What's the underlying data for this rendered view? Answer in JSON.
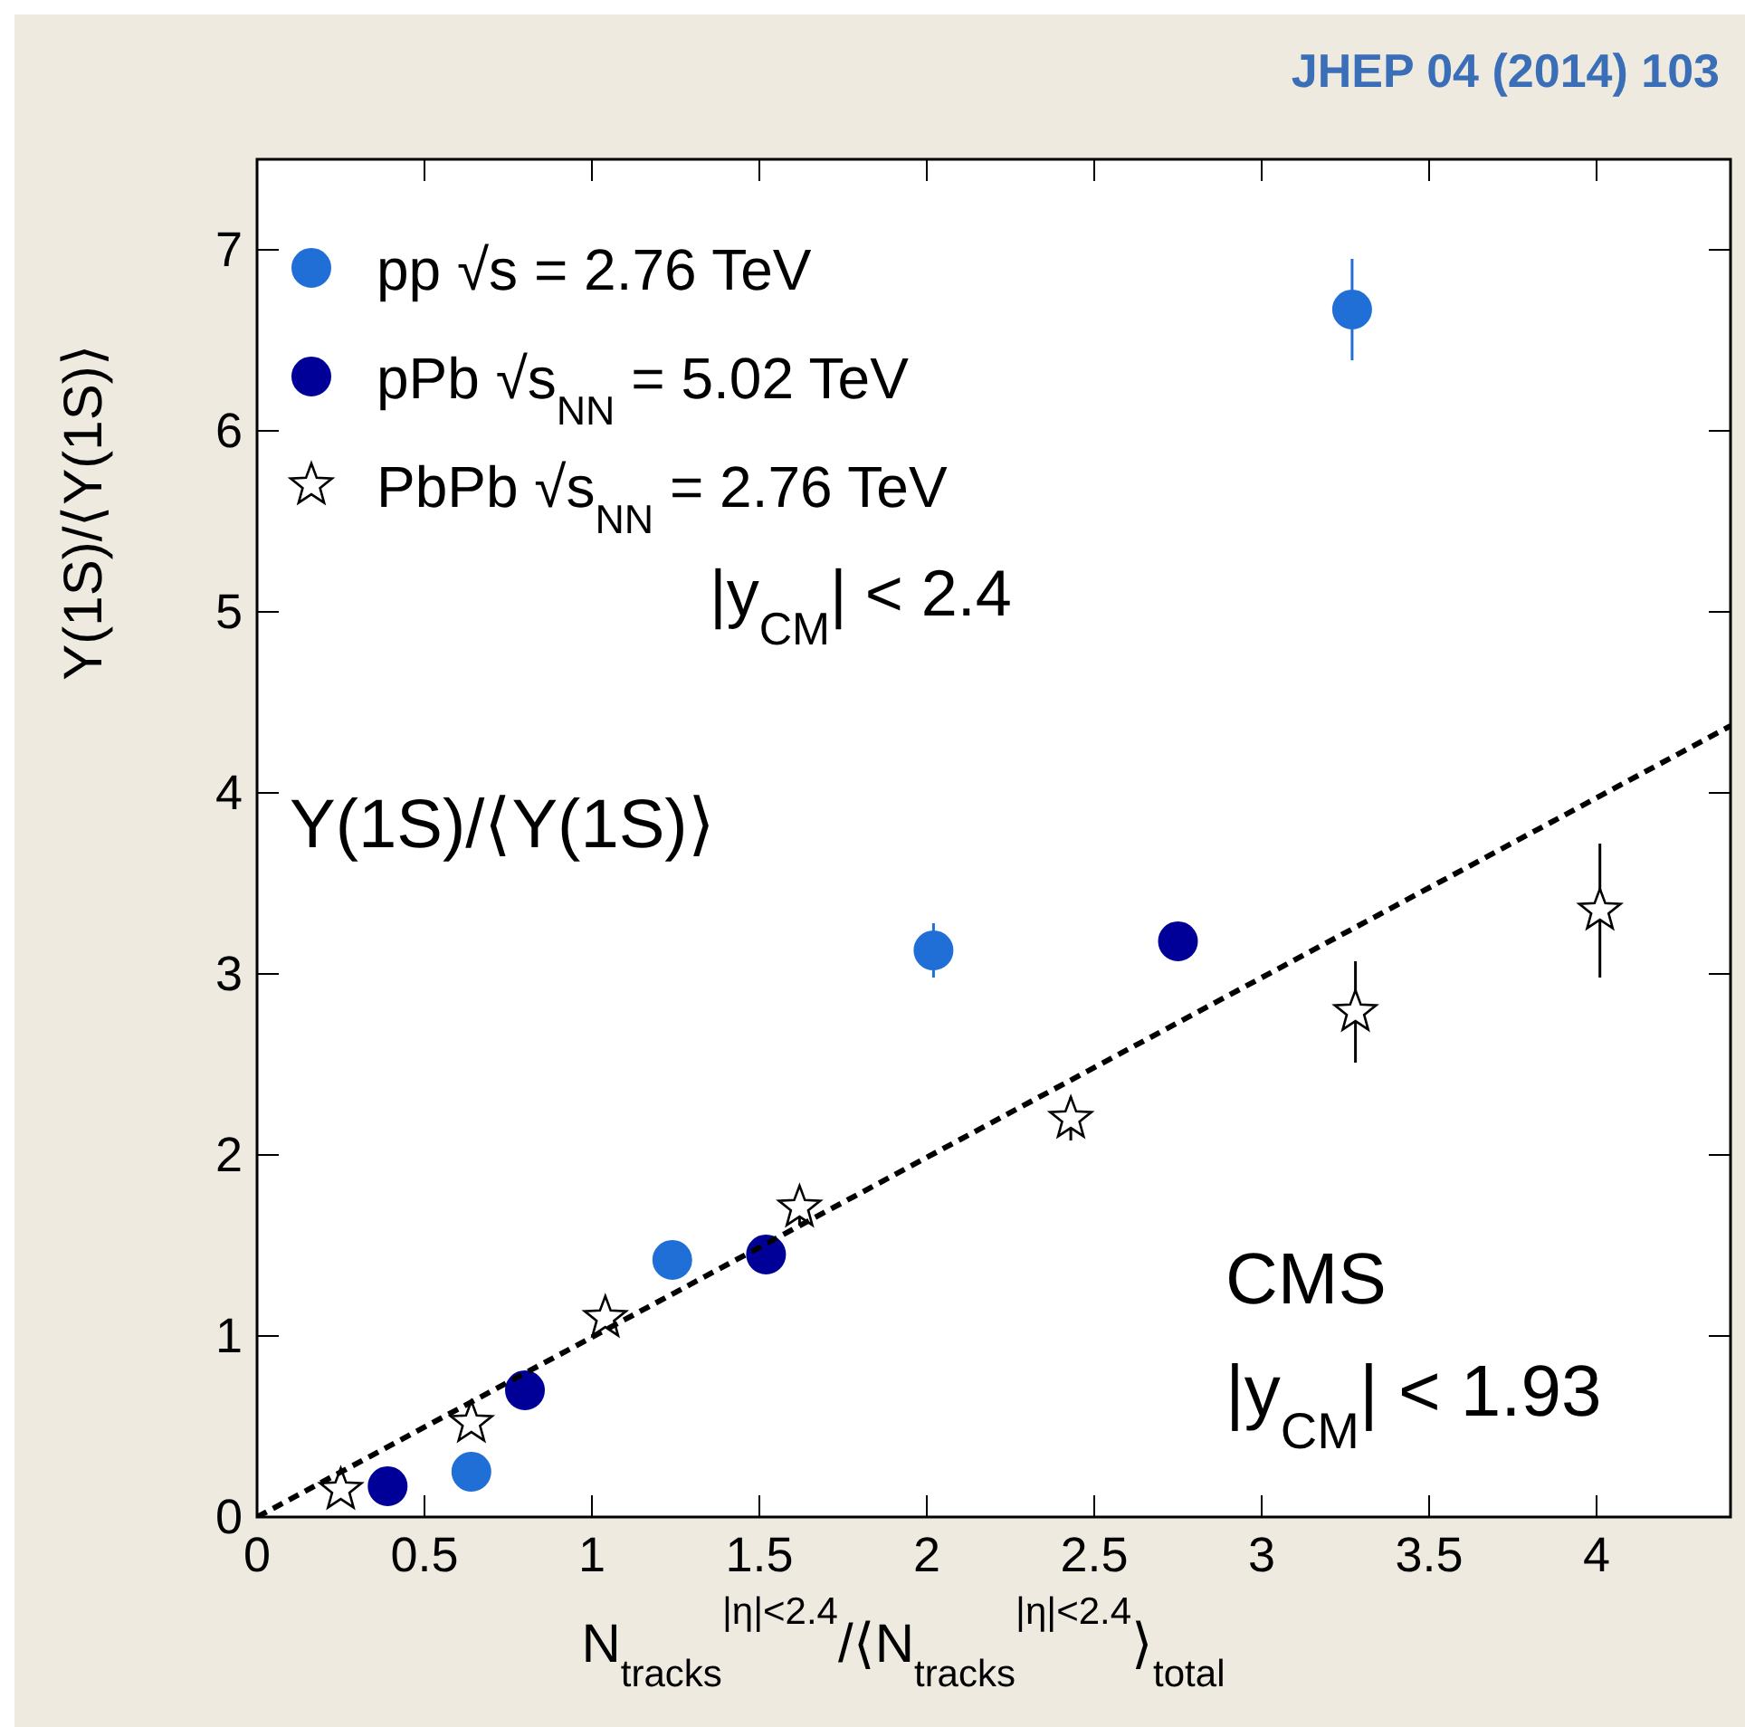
{
  "chart_data": {
    "type": "scatter",
    "xlabel": "N$_{tracks}$$^{|η|<2.4}$/⟨N$_{tracks}$$^{|η|<2.4}$⟩$_{total}$",
    "ylabel": "Υ(1S)/⟨Υ(1S)⟩",
    "xlim": [
      0,
      4.4
    ],
    "xticks": [
      0,
      0.5,
      1,
      1.5,
      2,
      2.5,
      3,
      3.5,
      4
    ],
    "ylim": [
      0,
      7.5
    ],
    "yticks": [
      0,
      1,
      2,
      3,
      4,
      5,
      6,
      7
    ],
    "grid": false,
    "legend": "top left",
    "series": [
      {
        "name": "pp √s = 2.76 TeV",
        "color": "#1f6fd6",
        "marker": "circle",
        "x": [
          0.64,
          1.24,
          2.02,
          3.27
        ],
        "values": [
          0.25,
          1.42,
          3.13,
          6.67
        ],
        "errors": [
          null,
          null,
          0.15,
          0.28
        ]
      },
      {
        "name": "pPb √s$_{NN}$ = 5.02 TeV",
        "color": "#000099",
        "marker": "circle",
        "x": [
          0.39,
          0.8,
          1.52,
          2.75
        ],
        "values": [
          0.17,
          0.7,
          1.45,
          3.18
        ]
      },
      {
        "name": "PbPb √s$_{NN}$ = 2.76 TeV",
        "color": "#000000",
        "marker": "star",
        "x": [
          0.25,
          0.64,
          1.04,
          1.62,
          2.43,
          3.28,
          4.01
        ],
        "values": [
          0.15,
          0.52,
          1.1,
          1.71,
          2.2,
          2.79,
          3.35
        ],
        "errors": [
          null,
          null,
          null,
          0.1,
          0.12,
          0.28,
          0.37
        ]
      },
      {
        "type": "line",
        "color": "#000000",
        "marker": "none",
        "line_style": "dashed",
        "x": [
          0,
          4.4
        ],
        "values": [
          0,
          4.37
        ]
      }
    ],
    "annotations": [
      "|y$_{CM}$| < 2.4",
      "CMS",
      "|y$_{CM}$| < 1.93",
      "Υ(1S)/⟨Υ(1S)⟩",
      "JHEP 04  (2014) 103"
    ]
  }
}
